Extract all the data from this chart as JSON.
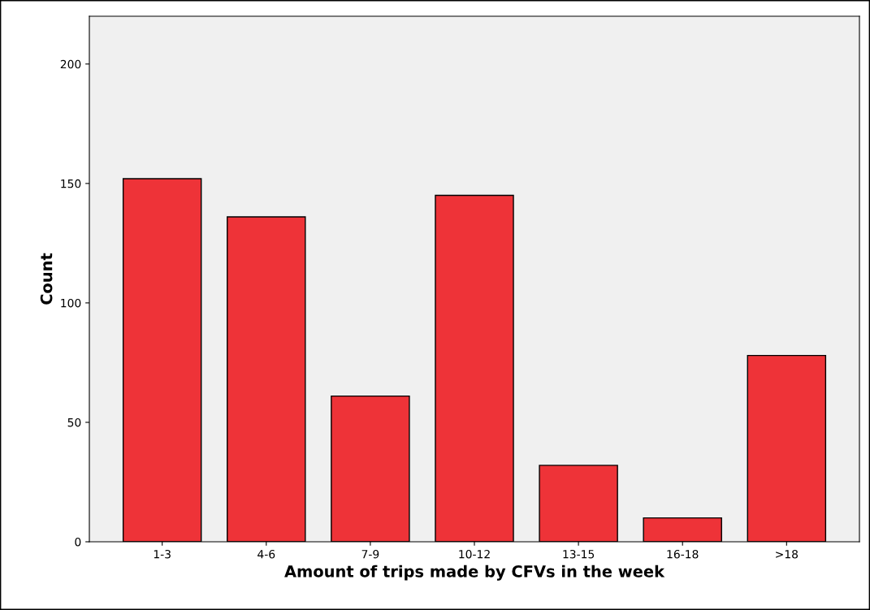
{
  "chart_data": {
    "type": "bar",
    "xlabel": "Amount of trips made by CFVs in the week",
    "ylabel": "Count",
    "categories": [
      "1-3",
      "4-6",
      "7-9",
      "10-12",
      "13-15",
      "16-18",
      ">18"
    ],
    "values": [
      152,
      136,
      61,
      145,
      32,
      10,
      78
    ],
    "color": "#ee3338",
    "ylim": [
      0,
      220
    ],
    "yticks": [
      0,
      50,
      100,
      150,
      200
    ],
    "grid": false,
    "legend": false
  }
}
